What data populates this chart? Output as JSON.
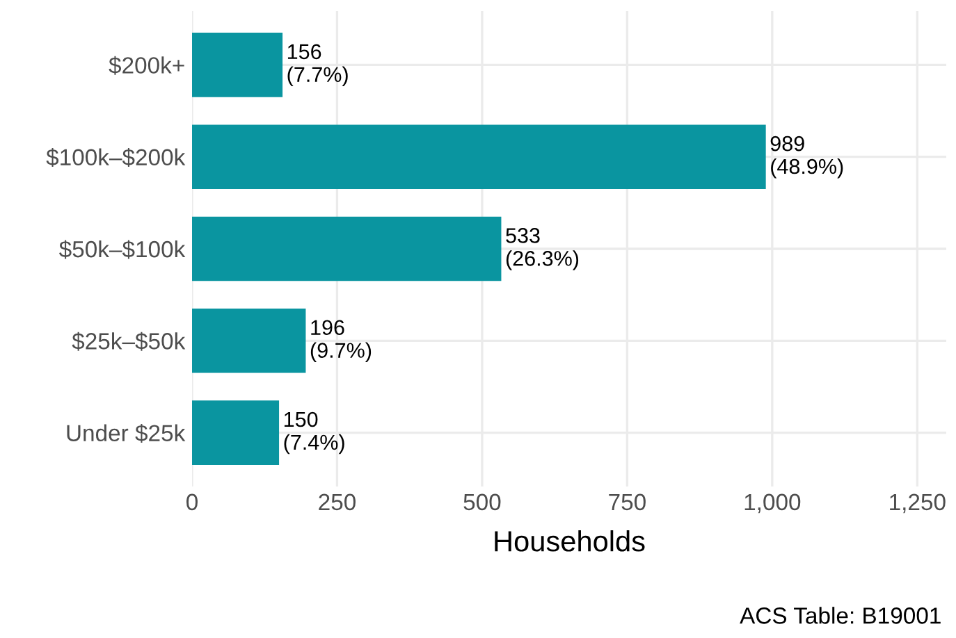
{
  "chart_data": {
    "type": "bar",
    "orientation": "horizontal",
    "categories": [
      "$200k+",
      "$100k–$200k",
      "$50k–$100k",
      "$25k–$50k",
      "Under $25k"
    ],
    "values": [
      156,
      989,
      533,
      196,
      150
    ],
    "value_labels": [
      "156\n(7.7%)",
      "989\n(48.9%)",
      "533\n(26.3%)",
      "196\n(9.7%)",
      "150\n(7.4%)"
    ],
    "color": "#0a95a0",
    "xlim": [
      0,
      1300
    ],
    "xticks": [
      0,
      250,
      500,
      750,
      {
        "value": 1000,
        "label": "1,000"
      },
      {
        "value": 1250,
        "label": "1,250"
      }
    ],
    "xlabel": "Households",
    "annotations": [
      "ACS Table: B19001"
    ],
    "grid": true
  }
}
